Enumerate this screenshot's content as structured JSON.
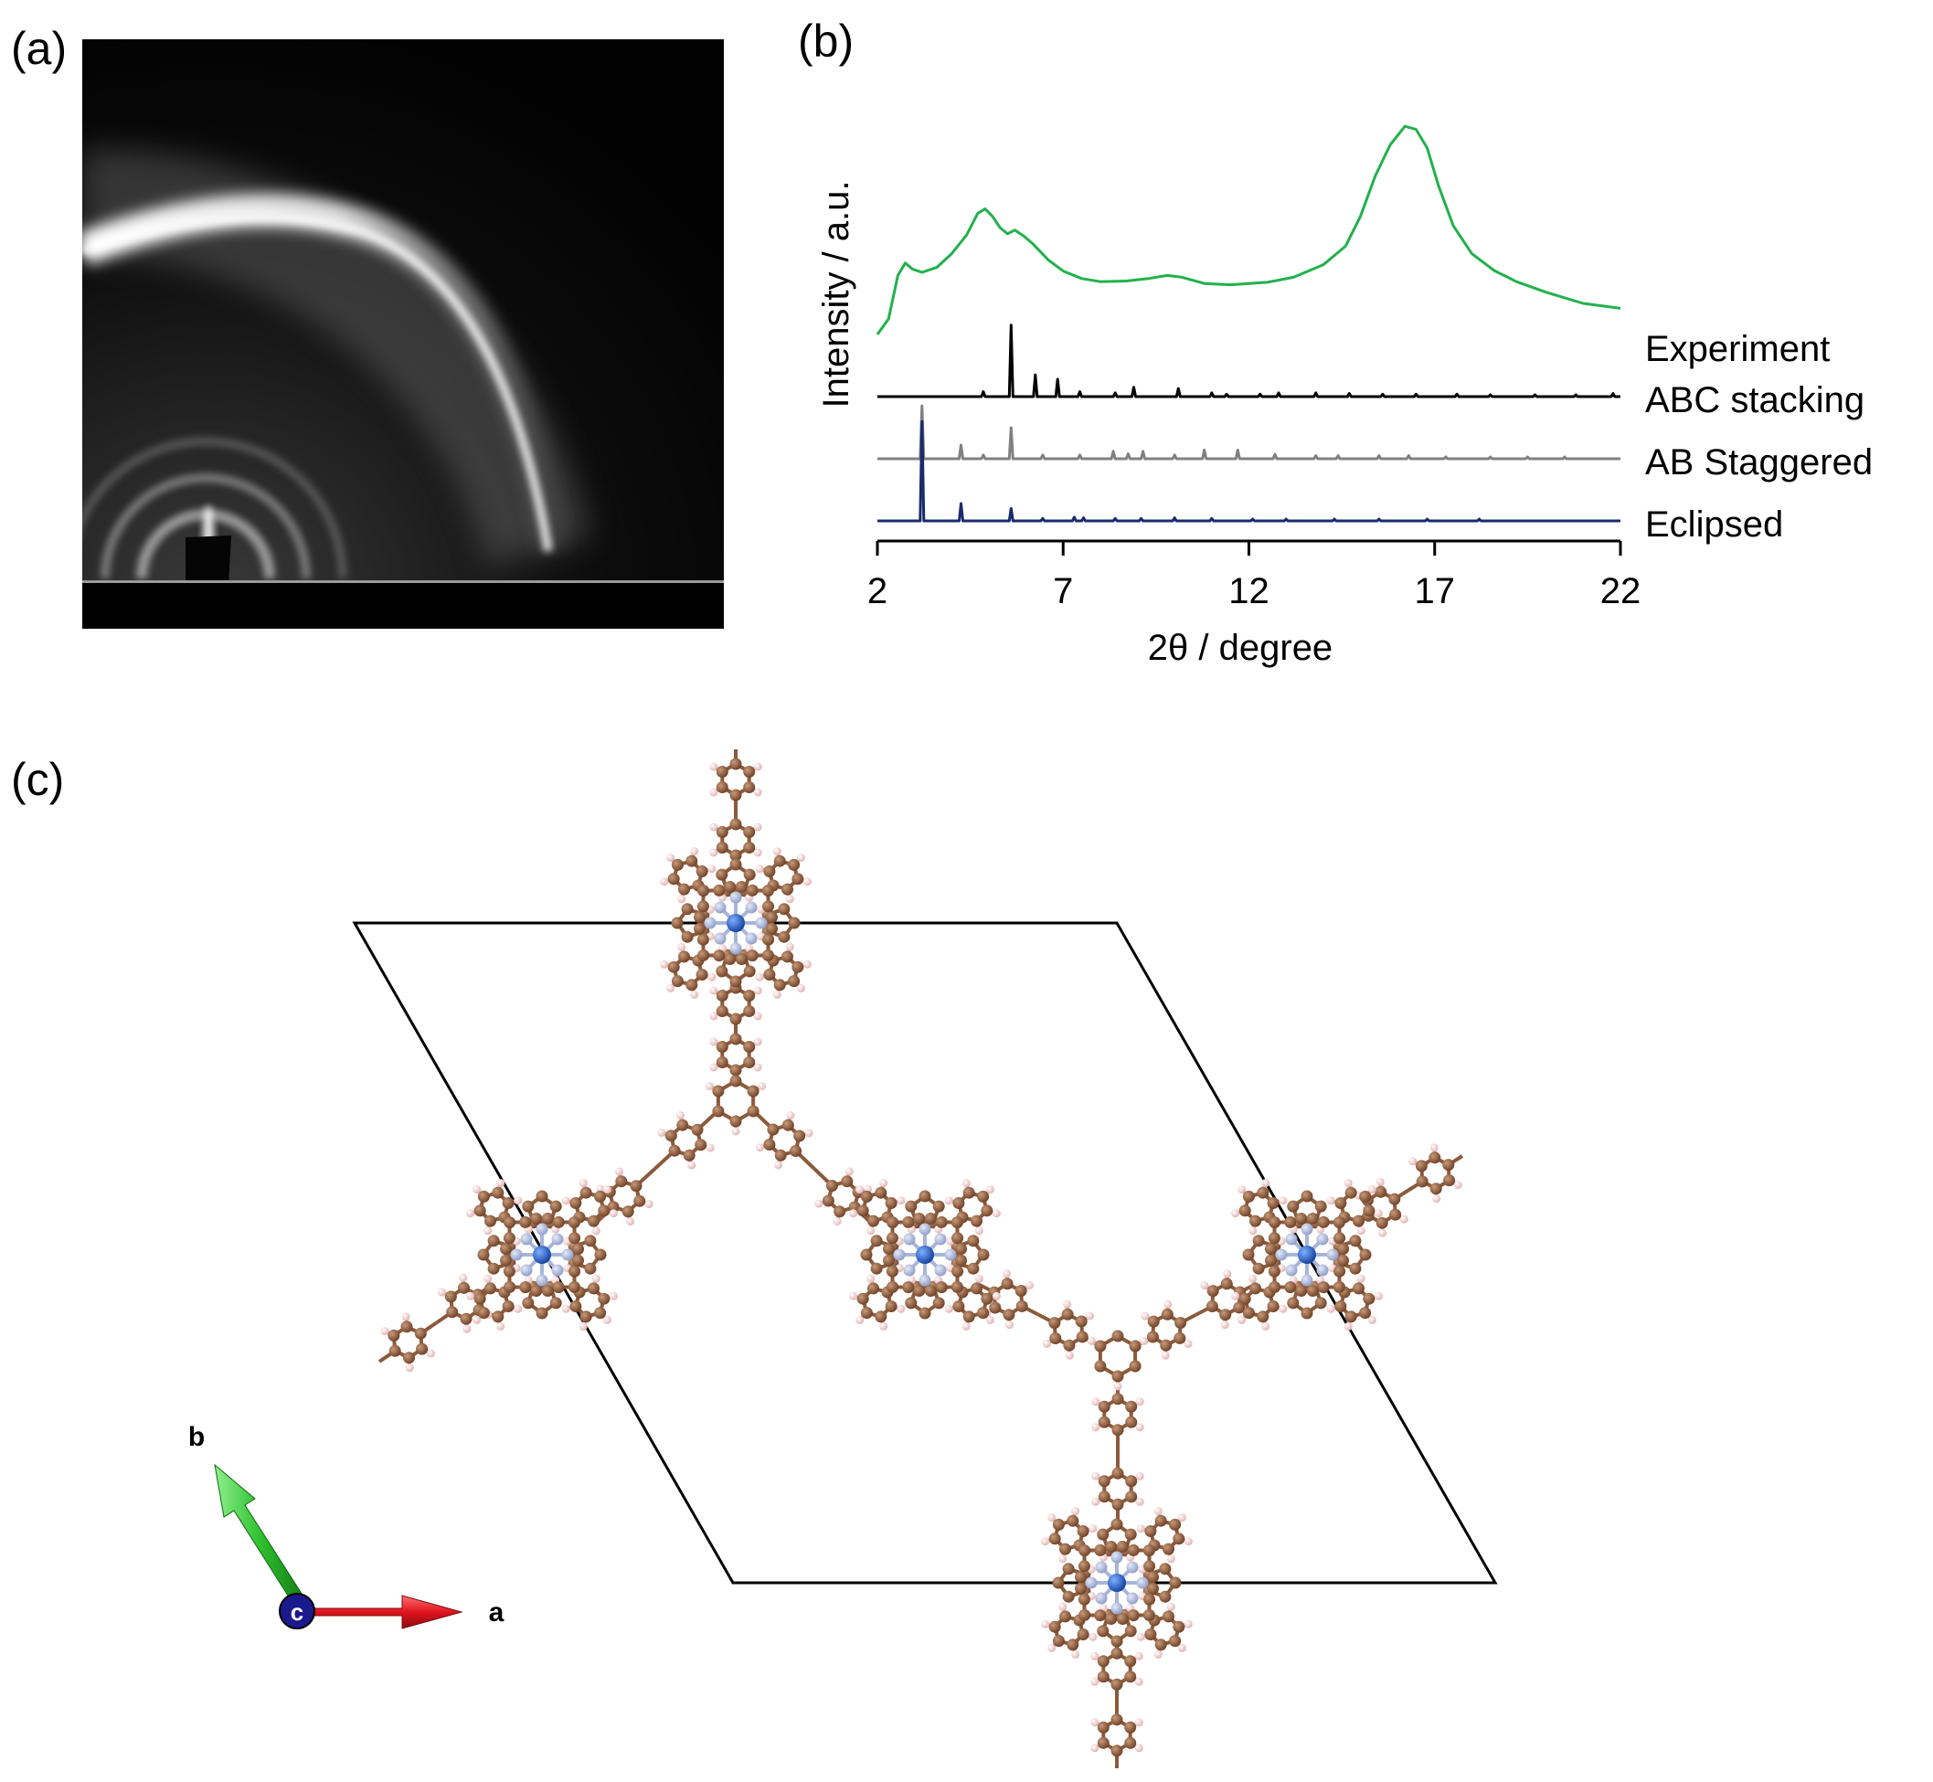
{
  "figure": {
    "panels": {
      "a": {
        "label": "(a)"
      },
      "b": {
        "label": "(b)"
      },
      "c": {
        "label": "(c)"
      }
    }
  },
  "chart_data": {
    "type": "line",
    "xlabel": "2θ / degree",
    "ylabel": "Intensity / a.u.",
    "xlim": [
      2,
      22
    ],
    "xticks": [
      2,
      7,
      12,
      17,
      22
    ],
    "xtick_labels": [
      "2",
      "7",
      "12",
      "17",
      "22"
    ],
    "grid": false,
    "legend": "right of curves",
    "series": [
      {
        "name": "Experiment",
        "color": "#22b14c",
        "kind": "curve",
        "offset": 3.0,
        "points": [
          [
            2.0,
            0.0
          ],
          [
            2.3,
            0.25
          ],
          [
            2.55,
            0.95
          ],
          [
            2.75,
            1.15
          ],
          [
            2.95,
            1.05
          ],
          [
            3.2,
            1.0
          ],
          [
            3.6,
            1.08
          ],
          [
            4.0,
            1.3
          ],
          [
            4.4,
            1.6
          ],
          [
            4.7,
            1.95
          ],
          [
            4.9,
            2.02
          ],
          [
            5.1,
            1.9
          ],
          [
            5.3,
            1.72
          ],
          [
            5.5,
            1.62
          ],
          [
            5.7,
            1.68
          ],
          [
            5.95,
            1.58
          ],
          [
            6.2,
            1.45
          ],
          [
            6.6,
            1.2
          ],
          [
            7.0,
            1.02
          ],
          [
            7.5,
            0.9
          ],
          [
            8.0,
            0.85
          ],
          [
            8.7,
            0.86
          ],
          [
            9.3,
            0.9
          ],
          [
            9.8,
            0.95
          ],
          [
            10.2,
            0.92
          ],
          [
            10.8,
            0.82
          ],
          [
            11.5,
            0.8
          ],
          [
            12.5,
            0.84
          ],
          [
            13.2,
            0.92
          ],
          [
            14.0,
            1.12
          ],
          [
            14.6,
            1.42
          ],
          [
            15.0,
            1.9
          ],
          [
            15.4,
            2.55
          ],
          [
            15.8,
            3.05
          ],
          [
            16.2,
            3.35
          ],
          [
            16.5,
            3.3
          ],
          [
            16.8,
            3.0
          ],
          [
            17.1,
            2.4
          ],
          [
            17.5,
            1.75
          ],
          [
            18.0,
            1.3
          ],
          [
            18.6,
            1.03
          ],
          [
            19.2,
            0.85
          ],
          [
            20.0,
            0.68
          ],
          [
            21.0,
            0.5
          ],
          [
            22.0,
            0.42
          ]
        ]
      },
      {
        "name": "ABC stacking",
        "color": "#000000",
        "kind": "sticks",
        "offset": 2.0,
        "peaks": [
          [
            4.85,
            0.08
          ],
          [
            5.6,
            1.15
          ],
          [
            6.25,
            0.35
          ],
          [
            6.85,
            0.28
          ],
          [
            7.45,
            0.08
          ],
          [
            8.4,
            0.06
          ],
          [
            8.9,
            0.15
          ],
          [
            10.1,
            0.13
          ],
          [
            11.0,
            0.06
          ],
          [
            11.4,
            0.04
          ],
          [
            12.3,
            0.04
          ],
          [
            12.8,
            0.06
          ],
          [
            13.8,
            0.06
          ],
          [
            14.7,
            0.05
          ],
          [
            15.6,
            0.04
          ],
          [
            16.5,
            0.04
          ],
          [
            17.6,
            0.04
          ],
          [
            18.5,
            0.03
          ],
          [
            19.7,
            0.03
          ],
          [
            20.8,
            0.03
          ],
          [
            21.8,
            0.05
          ]
        ]
      },
      {
        "name": "AB Staggered",
        "color": "#808080",
        "kind": "sticks",
        "offset": 1.0,
        "peaks": [
          [
            3.2,
            0.85
          ],
          [
            4.25,
            0.22
          ],
          [
            4.85,
            0.06
          ],
          [
            5.6,
            0.5
          ],
          [
            6.45,
            0.06
          ],
          [
            7.45,
            0.06
          ],
          [
            8.35,
            0.12
          ],
          [
            8.75,
            0.08
          ],
          [
            9.15,
            0.12
          ],
          [
            10.0,
            0.06
          ],
          [
            10.8,
            0.14
          ],
          [
            11.7,
            0.14
          ],
          [
            12.7,
            0.07
          ],
          [
            13.8,
            0.05
          ],
          [
            14.4,
            0.05
          ],
          [
            15.5,
            0.05
          ],
          [
            16.3,
            0.05
          ],
          [
            17.3,
            0.03
          ],
          [
            18.5,
            0.03
          ],
          [
            19.5,
            0.03
          ],
          [
            20.5,
            0.03
          ]
        ]
      },
      {
        "name": "Eclipsed",
        "color": "#1a2a6c",
        "kind": "sticks",
        "offset": 0.0,
        "peaks": [
          [
            3.2,
            1.6
          ],
          [
            4.25,
            0.28
          ],
          [
            5.6,
            0.2
          ],
          [
            6.45,
            0.04
          ],
          [
            7.3,
            0.06
          ],
          [
            7.55,
            0.05
          ],
          [
            8.4,
            0.04
          ],
          [
            9.1,
            0.04
          ],
          [
            10.0,
            0.05
          ],
          [
            11.0,
            0.04
          ],
          [
            12.1,
            0.03
          ],
          [
            13.0,
            0.03
          ],
          [
            14.3,
            0.03
          ],
          [
            15.5,
            0.03
          ],
          [
            16.8,
            0.03
          ],
          [
            18.2,
            0.03
          ]
        ]
      }
    ]
  },
  "axes_indicator": {
    "a": "a",
    "b": "b",
    "c": "c",
    "colors": {
      "a": "#e0141e",
      "b": "#2fc02f",
      "c": "#1a1a8c"
    }
  },
  "atom_colors": {
    "carbon": "#8b5a3c",
    "hydrogen": "#f2c8c8",
    "nitrogen": "#a8b4d8",
    "metal": "#1f5fd0"
  }
}
